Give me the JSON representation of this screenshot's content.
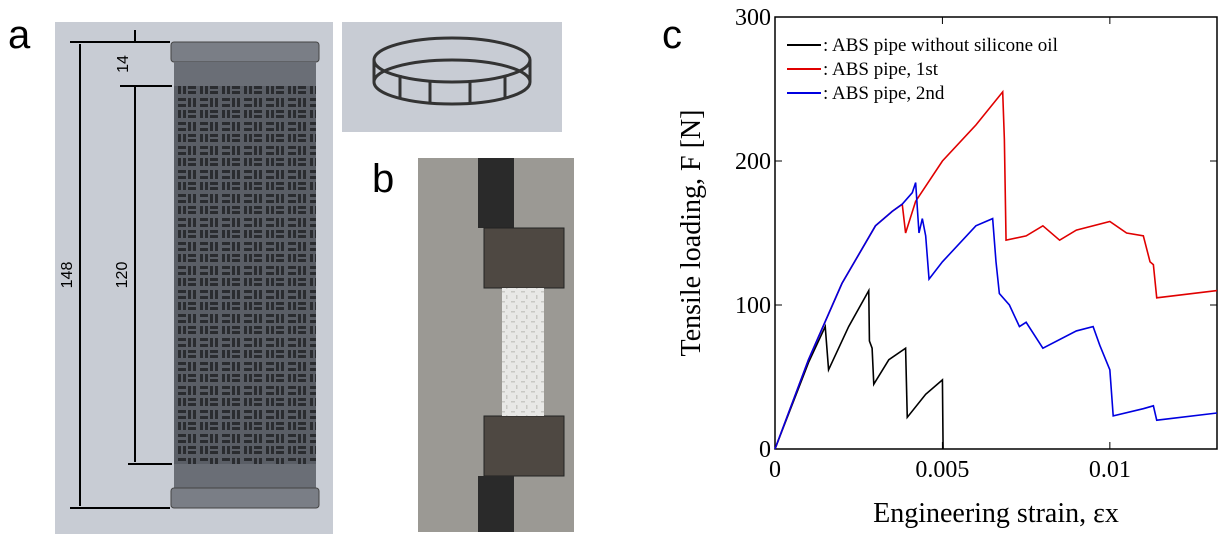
{
  "panels": {
    "a": "a",
    "b": "b",
    "c": "c"
  },
  "dimensions": {
    "total": "148",
    "end": "14",
    "middle": "120"
  },
  "chart_data": {
    "type": "line",
    "xlabel": "Engineering strain, εx",
    "ylabel": "Tensile loading, F [N]",
    "xlim": [
      0,
      0.0132
    ],
    "ylim": [
      0,
      300
    ],
    "xticks": [
      0,
      0.005,
      0.01
    ],
    "yticks": [
      0,
      100,
      200,
      300
    ],
    "legend": "upper left",
    "series": [
      {
        "name": ": ABS pipe without silicone oil",
        "color": "#000000",
        "x": [
          0,
          0.001,
          0.0015,
          0.0016,
          0.0022,
          0.0028,
          0.00282,
          0.0029,
          0.00295,
          0.0034,
          0.0039,
          0.00395,
          0.0045,
          0.005,
          0.00502
        ],
        "values": [
          0,
          60,
          85,
          55,
          85,
          110,
          75,
          70,
          45,
          62,
          70,
          22,
          38,
          48,
          0
        ]
      },
      {
        "name": ": ABS pipe, 1st",
        "color": "#e00000",
        "x": [
          0,
          0.001,
          0.002,
          0.003,
          0.0035,
          0.0038,
          0.0039,
          0.0042,
          0.005,
          0.006,
          0.0068,
          0.00685,
          0.0069,
          0.0075,
          0.008,
          0.0085,
          0.009,
          0.01,
          0.0105,
          0.011,
          0.0112,
          0.0113,
          0.0114,
          0.0132
        ],
        "values": [
          0,
          62,
          115,
          155,
          165,
          170,
          150,
          172,
          200,
          225,
          248,
          215,
          145,
          148,
          155,
          145,
          152,
          158,
          150,
          148,
          130,
          128,
          105,
          110
        ]
      },
      {
        "name": ": ABS pipe, 2nd",
        "color": "#0000e0",
        "x": [
          0,
          0.001,
          0.002,
          0.003,
          0.0035,
          0.0038,
          0.0041,
          0.0042,
          0.0043,
          0.0044,
          0.0045,
          0.0046,
          0.005,
          0.006,
          0.0065,
          0.0066,
          0.0067,
          0.007,
          0.0073,
          0.0075,
          0.008,
          0.009,
          0.0095,
          0.0097,
          0.01,
          0.0101,
          0.011,
          0.0113,
          0.0114,
          0.0132
        ],
        "values": [
          0,
          62,
          115,
          155,
          165,
          170,
          178,
          185,
          150,
          160,
          148,
          118,
          130,
          155,
          160,
          130,
          108,
          100,
          85,
          88,
          70,
          82,
          85,
          72,
          55,
          23,
          28,
          30,
          20,
          25
        ]
      }
    ]
  }
}
